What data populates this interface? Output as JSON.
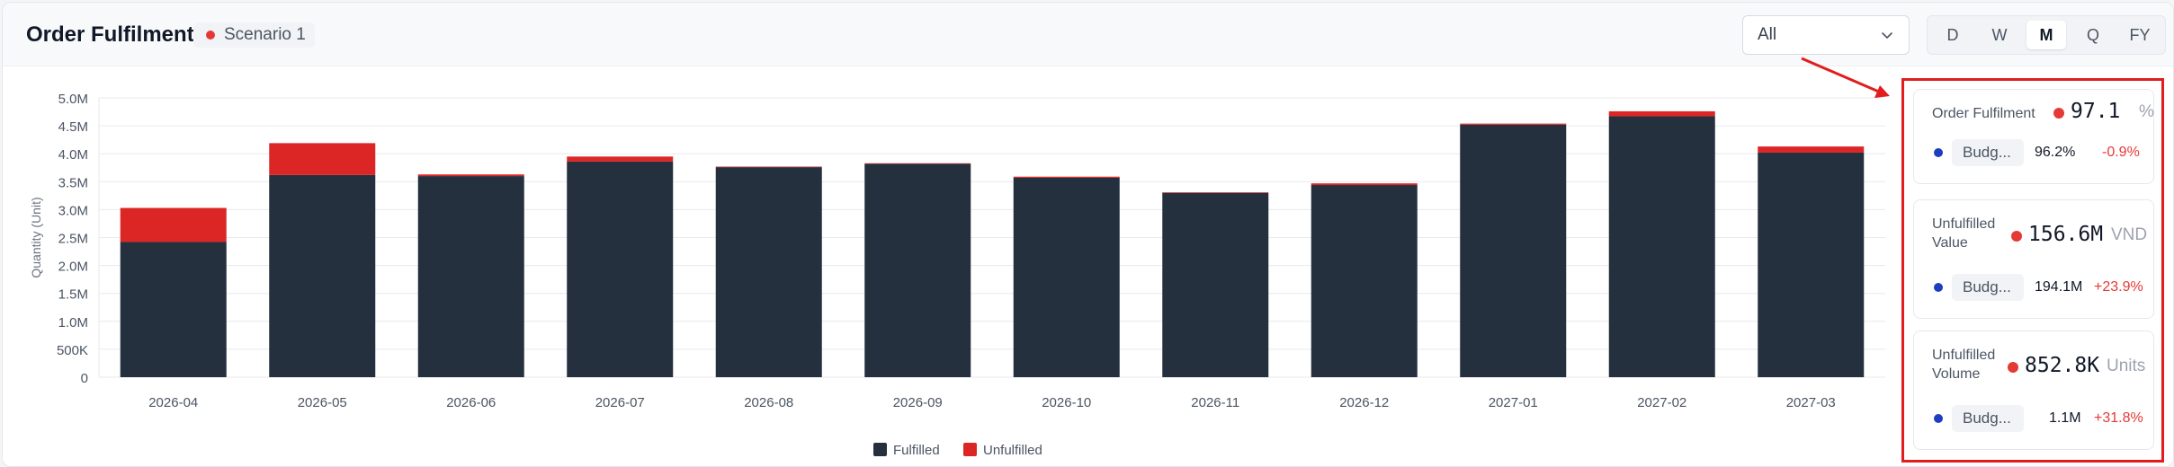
{
  "header": {
    "title": "Order Fulfilment",
    "scenario": "Scenario 1",
    "filter_value": "All",
    "periods": [
      "D",
      "W",
      "M",
      "Q",
      "FY"
    ],
    "active_period": "M"
  },
  "chart_data": {
    "type": "bar",
    "stacked": true,
    "categories": [
      "2026-04",
      "2026-05",
      "2026-06",
      "2026-07",
      "2026-08",
      "2026-09",
      "2026-10",
      "2026-11",
      "2026-12",
      "2027-01",
      "2027-02",
      "2027-03"
    ],
    "series": [
      {
        "name": "Fulfilled",
        "color": "#24303e",
        "values": [
          2.42,
          3.62,
          3.6,
          3.86,
          3.76,
          3.82,
          3.57,
          3.3,
          3.44,
          4.52,
          4.67,
          4.02
        ]
      },
      {
        "name": "Unfulfilled",
        "color": "#dc2626",
        "values": [
          0.61,
          0.57,
          0.03,
          0.09,
          0.01,
          0.01,
          0.02,
          0.01,
          0.03,
          0.02,
          0.09,
          0.11
        ]
      }
    ],
    "ylabel": "Quantity (Unit)",
    "yticks": [
      "0",
      "500K",
      "1.0M",
      "1.5M",
      "2.0M",
      "2.5M",
      "3.0M",
      "3.5M",
      "4.0M",
      "4.5M",
      "5.0M"
    ],
    "ylim": [
      0,
      5.0
    ],
    "grid": true,
    "legend": "bottom-center"
  },
  "cards": [
    {
      "label": "Order Fulfilment",
      "value": "97.1",
      "unit": "%",
      "budget_label": "Budg...",
      "budget_value": "96.2%",
      "delta": "-0.9%",
      "value_color": "#e53935",
      "budget_color": "#1d3fbf"
    },
    {
      "label": "Unfulfilled Value",
      "value": "156.6M",
      "unit": "VND",
      "budget_label": "Budg...",
      "budget_value": "194.1M",
      "delta": "+23.9%",
      "value_color": "#e53935",
      "budget_color": "#1d3fbf"
    },
    {
      "label": "Unfulfilled Volume",
      "value": "852.8K",
      "unit": "Units",
      "budget_label": "Budg...",
      "budget_value": "1.1M",
      "delta": "+31.8%",
      "value_color": "#e53935",
      "budget_color": "#1d3fbf"
    }
  ]
}
